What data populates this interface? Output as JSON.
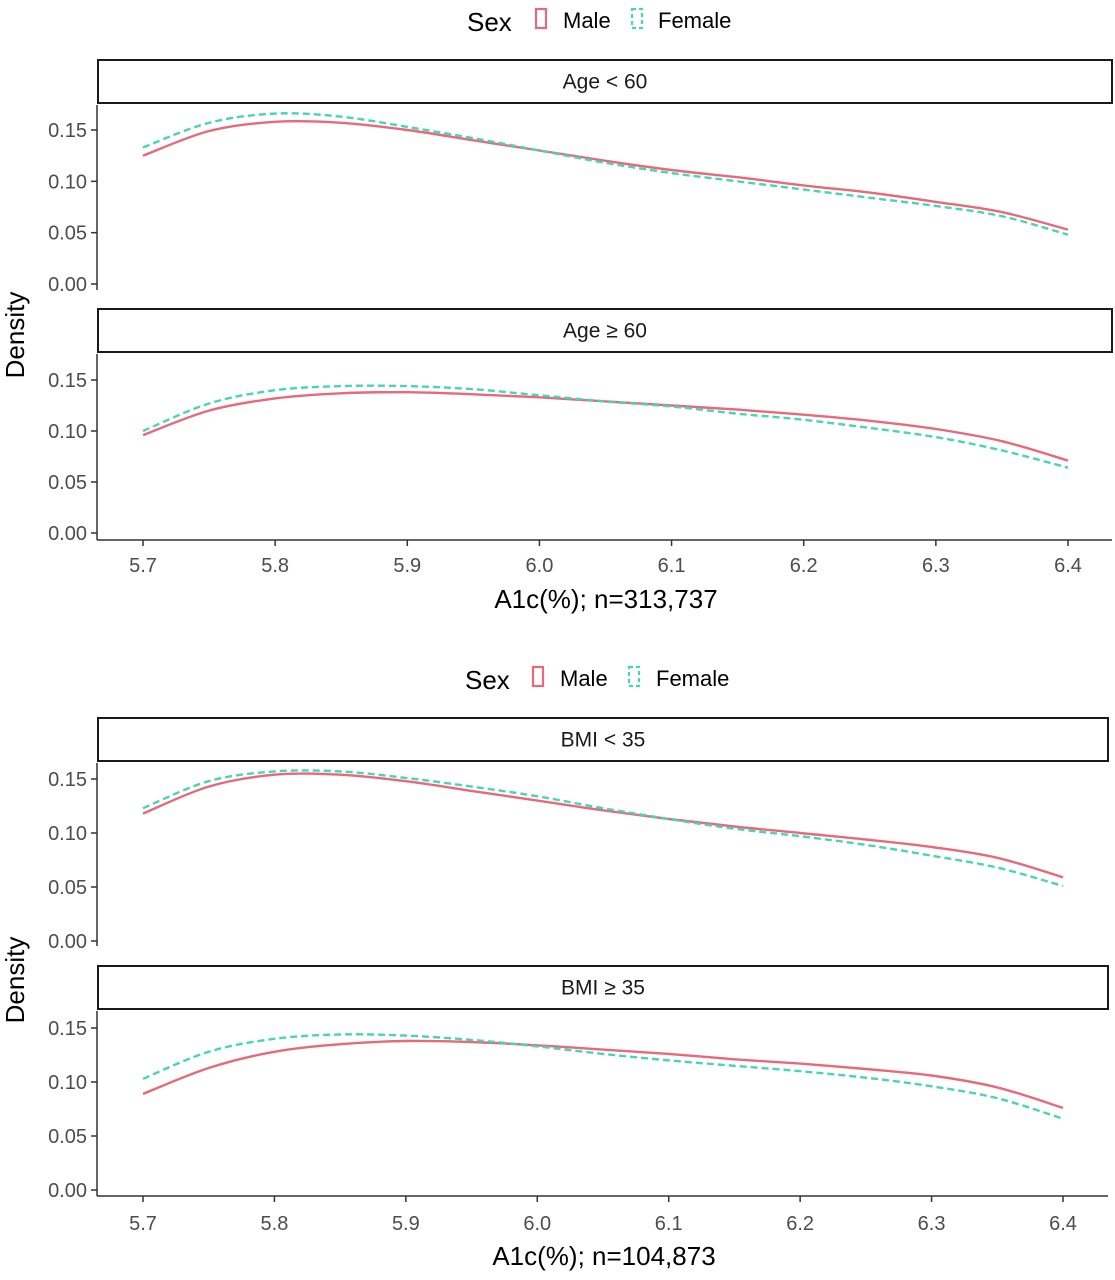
{
  "colors": {
    "male": "#e7697a",
    "female": "#46d6b0",
    "strip_border": "#1a1a1a",
    "axis": "#333333"
  },
  "chart_data": [
    {
      "type": "line",
      "legend": {
        "title": "Sex",
        "entries": [
          "Male",
          "Female"
        ],
        "placement": "top"
      },
      "xlabel": "A1c(%); n=313,737",
      "ylabel": "Density",
      "xlim": [
        5.665,
        6.435
      ],
      "ylim": [
        0,
        0.175
      ],
      "x_ticks": [
        5.7,
        5.8,
        5.9,
        6.0,
        6.1,
        6.2,
        6.3,
        6.4
      ],
      "x_tick_labels": [
        "5.7",
        "5.8",
        "5.9",
        "6.0",
        "6.1",
        "6.2",
        "6.3",
        "6.4"
      ],
      "y_ticks": [
        0,
        0.05,
        0.1,
        0.15
      ],
      "y_tick_labels": [
        "0.00",
        "0.05",
        "0.10",
        "0.15"
      ],
      "grid": false,
      "x": [
        5.7,
        5.75,
        5.8,
        5.85,
        5.9,
        5.95,
        6.0,
        6.05,
        6.1,
        6.15,
        6.2,
        6.25,
        6.3,
        6.35,
        6.4
      ],
      "panels": [
        {
          "label": "Age < 60",
          "series": [
            {
              "name": "Male",
              "values": [
                0.125,
                0.149,
                0.158,
                0.157,
                0.15,
                0.14,
                0.13,
                0.12,
                0.111,
                0.104,
                0.096,
                0.089,
                0.08,
                0.07,
                0.053
              ]
            },
            {
              "name": "Female",
              "values": [
                0.133,
                0.157,
                0.166,
                0.163,
                0.153,
                0.142,
                0.13,
                0.118,
                0.108,
                0.1,
                0.092,
                0.084,
                0.076,
                0.066,
                0.048
              ]
            }
          ]
        },
        {
          "label": "Age ≥ 60",
          "series": [
            {
              "name": "Male",
              "values": [
                0.096,
                0.12,
                0.132,
                0.137,
                0.138,
                0.136,
                0.133,
                0.129,
                0.125,
                0.121,
                0.116,
                0.11,
                0.102,
                0.09,
                0.071
              ]
            },
            {
              "name": "Female",
              "values": [
                0.1,
                0.127,
                0.14,
                0.144,
                0.144,
                0.141,
                0.135,
                0.129,
                0.124,
                0.117,
                0.111,
                0.103,
                0.094,
                0.081,
                0.064
              ]
            }
          ]
        }
      ]
    },
    {
      "type": "line",
      "legend": {
        "title": "Sex",
        "entries": [
          "Male",
          "Female"
        ],
        "placement": "top"
      },
      "xlabel": "A1c(%); n=104,873",
      "ylabel": "Density",
      "xlim": [
        5.665,
        6.435
      ],
      "ylim": [
        0,
        0.175
      ],
      "x_ticks": [
        5.7,
        5.8,
        5.9,
        6.0,
        6.1,
        6.2,
        6.3,
        6.4
      ],
      "x_tick_labels": [
        "5.7",
        "5.8",
        "5.9",
        "6.0",
        "6.1",
        "6.2",
        "6.3",
        "6.4"
      ],
      "y_ticks": [
        0,
        0.05,
        0.1,
        0.15
      ],
      "y_tick_labels": [
        "0.00",
        "0.05",
        "0.10",
        "0.15"
      ],
      "grid": false,
      "x": [
        5.7,
        5.75,
        5.8,
        5.85,
        5.9,
        5.95,
        6.0,
        6.05,
        6.1,
        6.15,
        6.2,
        6.25,
        6.3,
        6.35,
        6.4
      ],
      "panels": [
        {
          "label": "BMI < 35",
          "series": [
            {
              "name": "Male",
              "values": [
                0.118,
                0.143,
                0.154,
                0.154,
                0.148,
                0.139,
                0.13,
                0.121,
                0.113,
                0.106,
                0.1,
                0.094,
                0.087,
                0.077,
                0.059
              ]
            },
            {
              "name": "Female",
              "values": [
                0.123,
                0.148,
                0.157,
                0.157,
                0.151,
                0.143,
                0.134,
                0.123,
                0.113,
                0.104,
                0.097,
                0.089,
                0.079,
                0.068,
                0.051
              ]
            }
          ]
        },
        {
          "label": "BMI ≥ 35",
          "series": [
            {
              "name": "Male",
              "values": [
                0.089,
                0.113,
                0.128,
                0.135,
                0.138,
                0.137,
                0.134,
                0.13,
                0.126,
                0.121,
                0.117,
                0.112,
                0.106,
                0.095,
                0.076
              ]
            },
            {
              "name": "Female",
              "values": [
                0.103,
                0.128,
                0.14,
                0.144,
                0.143,
                0.139,
                0.133,
                0.126,
                0.12,
                0.115,
                0.11,
                0.104,
                0.096,
                0.085,
                0.066
              ]
            }
          ]
        }
      ]
    }
  ]
}
